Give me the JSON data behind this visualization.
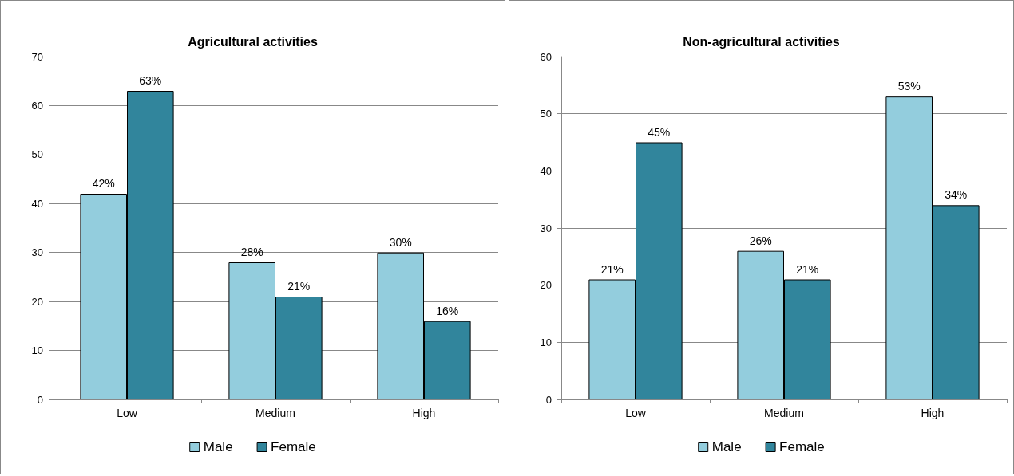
{
  "chart_data": [
    {
      "type": "bar",
      "title": "Agricultural activities",
      "categories": [
        "Low",
        "Medium",
        "High"
      ],
      "series": [
        {
          "name": "Male",
          "color": "#93cddd",
          "values": [
            42,
            28,
            30
          ],
          "value_labels": [
            "42%",
            "28%",
            "30%"
          ]
        },
        {
          "name": "Female",
          "color": "#31859c",
          "values": [
            63,
            21,
            16
          ],
          "value_labels": [
            "63%",
            "21%",
            "16%"
          ]
        }
      ],
      "ylim": [
        0,
        70
      ],
      "yticks": [
        0,
        10,
        20,
        30,
        40,
        50,
        60,
        70
      ],
      "grid": "y",
      "legend": "bottom"
    },
    {
      "type": "bar",
      "title": "Non-agricultural activities",
      "categories": [
        "Low",
        "Medium",
        "High"
      ],
      "series": [
        {
          "name": "Male",
          "color": "#93cddd",
          "values": [
            21,
            26,
            53
          ],
          "value_labels": [
            "21%",
            "26%",
            "53%"
          ]
        },
        {
          "name": "Female",
          "color": "#31859c",
          "values": [
            45,
            21,
            34
          ],
          "value_labels": [
            "45%",
            "21%",
            "34%"
          ]
        }
      ],
      "ylim": [
        0,
        60
      ],
      "yticks": [
        0,
        10,
        20,
        30,
        40,
        50,
        60
      ],
      "grid": "y",
      "legend": "bottom"
    }
  ]
}
